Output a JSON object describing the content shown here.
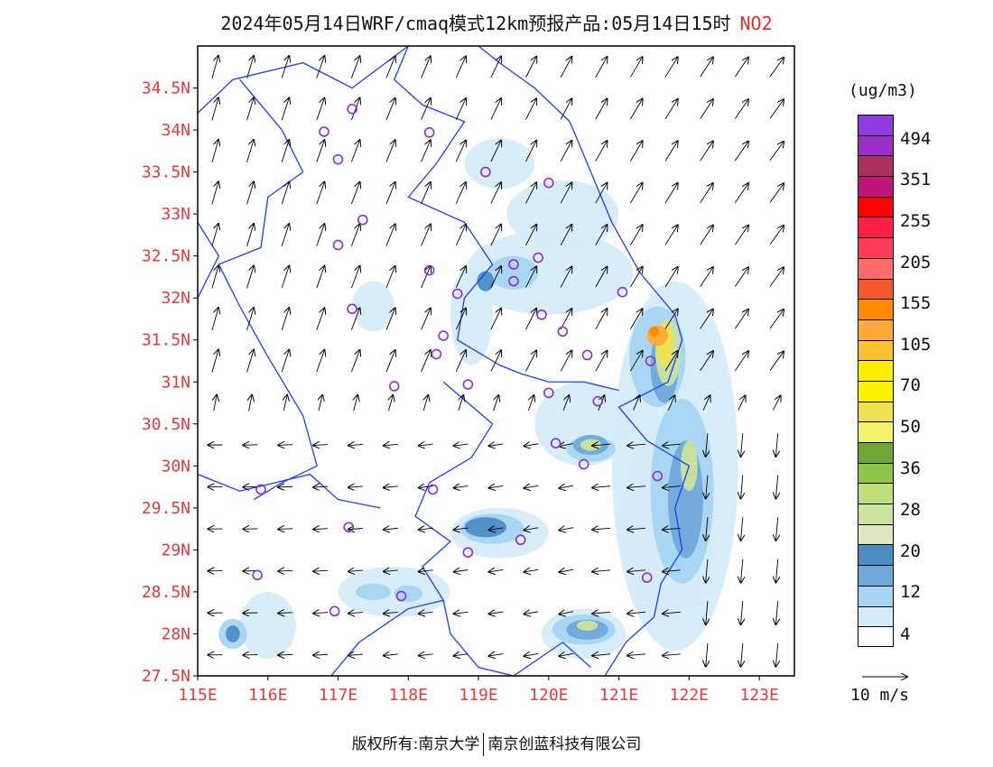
{
  "title": {
    "text": "2024年05月14日WRF/cmaq模式12km预报产品:05月14日15时",
    "pollutant": "NO2",
    "pollutant_color": "#e03030"
  },
  "axes": {
    "y_labels": [
      "34.5N",
      "34N",
      "33.5N",
      "33N",
      "32.5N",
      "32N",
      "31.5N",
      "31N",
      "30.5N",
      "30N",
      "29.5N",
      "29N",
      "28.5N",
      "28N",
      "27.5N"
    ],
    "x_labels": [
      "115E",
      "116E",
      "117E",
      "118E",
      "119E",
      "120E",
      "121E",
      "122E",
      "123E"
    ],
    "label_color": "#e83a3a",
    "lon_range": [
      115,
      123.5
    ],
    "lat_range": [
      27.5,
      35
    ]
  },
  "colorbar": {
    "unit": "(ug/m3)",
    "levels": [
      {
        "color": "#8d3adf"
      },
      {
        "color": "#9a30c8"
      },
      {
        "color": "#ad2f5f"
      },
      {
        "color": "#c0167a"
      },
      {
        "color": "#ff0000"
      },
      {
        "color": "#ff1f49"
      },
      {
        "color": "#ff3b55"
      },
      {
        "color": "#ff6b6b"
      },
      {
        "color": "#f4582c"
      },
      {
        "color": "#ff8a00"
      },
      {
        "color": "#ffaa33"
      },
      {
        "color": "#f8c233"
      },
      {
        "color": "#ffee00"
      },
      {
        "color": "#fff200"
      },
      {
        "color": "#f1e050"
      },
      {
        "color": "#f1f36a"
      },
      {
        "color": "#6ea734"
      },
      {
        "color": "#8ec64b"
      },
      {
        "color": "#c0df7a"
      },
      {
        "color": "#cbe39a"
      },
      {
        "color": "#dde6bc"
      },
      {
        "color": "#4b8ec6"
      },
      {
        "color": "#6fa9da"
      },
      {
        "color": "#a6d6f2"
      },
      {
        "color": "#d6ecfa"
      },
      {
        "color": "#ffffff"
      }
    ],
    "labels": [
      "494",
      "351",
      "255",
      "205",
      "155",
      "105",
      "70",
      "50",
      "36",
      "28",
      "20",
      "12",
      "4"
    ]
  },
  "wind_reference": {
    "text": "10 m/s"
  },
  "monitoring_sites": [
    [
      117.2,
      34.25
    ],
    [
      116.8,
      33.98
    ],
    [
      118.3,
      33.97
    ],
    [
      117.0,
      33.65
    ],
    [
      119.1,
      33.5
    ],
    [
      120.0,
      33.37
    ],
    [
      117.35,
      32.93
    ],
    [
      117.0,
      32.63
    ],
    [
      118.3,
      32.33
    ],
    [
      119.5,
      32.4
    ],
    [
      119.85,
      32.48
    ],
    [
      119.5,
      32.2
    ],
    [
      118.7,
      32.05
    ],
    [
      121.05,
      32.07
    ],
    [
      117.2,
      31.87
    ],
    [
      119.9,
      31.8
    ],
    [
      120.2,
      31.6
    ],
    [
      118.5,
      31.55
    ],
    [
      118.4,
      31.33
    ],
    [
      120.55,
      31.32
    ],
    [
      121.45,
      31.25
    ],
    [
      117.8,
      30.95
    ],
    [
      118.85,
      30.97
    ],
    [
      120.0,
      30.87
    ],
    [
      120.7,
      30.77
    ],
    [
      120.1,
      30.27
    ],
    [
      120.5,
      30.02
    ],
    [
      121.55,
      29.88
    ],
    [
      115.9,
      29.72
    ],
    [
      118.35,
      29.72
    ],
    [
      117.15,
      29.27
    ],
    [
      119.6,
      29.12
    ],
    [
      118.85,
      28.97
    ],
    [
      115.85,
      28.7
    ],
    [
      121.4,
      28.67
    ],
    [
      117.9,
      28.45
    ],
    [
      116.95,
      28.27
    ]
  ],
  "copyright": {
    "left": "版权所有:南京大学",
    "right": "南京创蓝科技有限公司"
  }
}
